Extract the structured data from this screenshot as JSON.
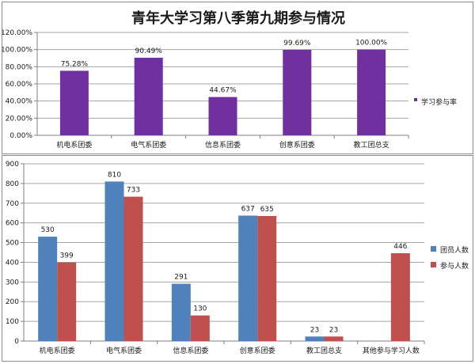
{
  "chart_data": [
    {
      "type": "bar",
      "title": "青年大学习第八季第九期参与情况",
      "categories": [
        "机电系团委",
        "电气系团委",
        "信息系团委",
        "创意系团委",
        "教工团总支"
      ],
      "series": [
        {
          "name": "学习参与率",
          "values": [
            75.28,
            90.49,
            44.67,
            99.69,
            100.0
          ],
          "color": "#7030a0"
        }
      ],
      "data_labels": [
        "75.28%",
        "90.49%",
        "44.67%",
        "99.69%",
        "100.00%"
      ],
      "y_ticks": [
        "0.00%",
        "20.00%",
        "40.00%",
        "60.00%",
        "80.00%",
        "100.00%",
        "120.00%"
      ],
      "ylim": [
        0,
        120
      ],
      "grid": true,
      "legend": "right"
    },
    {
      "type": "bar",
      "title": "",
      "categories": [
        "机电系团委",
        "电气系团委",
        "信息系团委",
        "创意系团委",
        "教工团总支",
        "其他参与学习人数"
      ],
      "series": [
        {
          "name": "团员人数",
          "values": [
            530,
            810,
            291,
            637,
            23,
            null
          ],
          "labels": [
            "530",
            "810",
            "291",
            "637",
            "23",
            ""
          ],
          "color": "#4f81bd"
        },
        {
          "name": "参与人数",
          "values": [
            399,
            733,
            130,
            635,
            23,
            446
          ],
          "labels": [
            "399",
            "733",
            "130",
            "635",
            "23",
            "446"
          ],
          "color": "#c0504d"
        }
      ],
      "y_ticks": [
        "0",
        "100",
        "200",
        "300",
        "400",
        "500",
        "600",
        "700",
        "800",
        "900"
      ],
      "ylim": [
        0,
        900
      ],
      "grid": true,
      "legend": "right"
    }
  ]
}
